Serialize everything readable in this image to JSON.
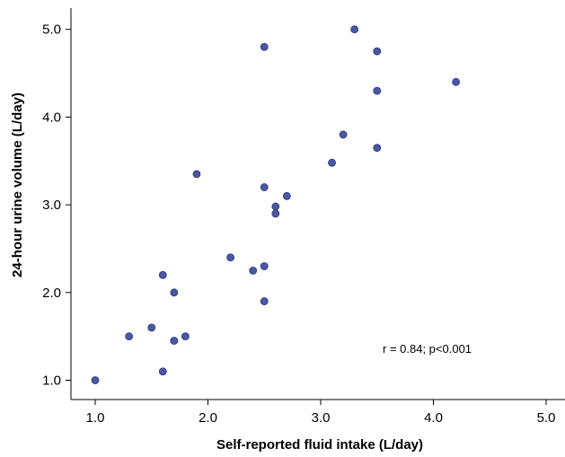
{
  "chart_data": {
    "type": "scatter",
    "xlabel": "Self-reported fluid intake (L/day)",
    "ylabel": "24-hour urine volume (L/day)",
    "xlim": [
      0.75,
      5.2
    ],
    "ylim": [
      0.8,
      5.18
    ],
    "x_ticks": [
      1.0,
      2.0,
      3.0,
      4.0,
      5.0
    ],
    "x_tick_labels": [
      "1.0",
      "2.0",
      "3.0",
      "4.0",
      "5.0"
    ],
    "y_ticks": [
      1.0,
      2.0,
      3.0,
      4.0,
      5.0
    ],
    "y_tick_labels": [
      "1.0",
      "2.0",
      "3.0",
      "4.0",
      "5.0"
    ],
    "annotation": "r = 0.84; p<0.001",
    "grid": false,
    "marker_color": "#4a57a6",
    "marker_edge_color": "#2b3575",
    "points": [
      {
        "x": 1.0,
        "y": 1.0
      },
      {
        "x": 1.3,
        "y": 1.5
      },
      {
        "x": 1.5,
        "y": 1.6
      },
      {
        "x": 1.6,
        "y": 1.1
      },
      {
        "x": 1.6,
        "y": 2.2
      },
      {
        "x": 1.7,
        "y": 2.0
      },
      {
        "x": 1.7,
        "y": 1.45
      },
      {
        "x": 1.8,
        "y": 1.5
      },
      {
        "x": 1.9,
        "y": 3.35
      },
      {
        "x": 2.2,
        "y": 2.4
      },
      {
        "x": 2.4,
        "y": 2.25
      },
      {
        "x": 2.5,
        "y": 2.3
      },
      {
        "x": 2.5,
        "y": 1.9
      },
      {
        "x": 2.5,
        "y": 3.2
      },
      {
        "x": 2.5,
        "y": 4.8
      },
      {
        "x": 2.6,
        "y": 2.98
      },
      {
        "x": 2.6,
        "y": 2.9
      },
      {
        "x": 2.7,
        "y": 3.1
      },
      {
        "x": 3.1,
        "y": 3.48
      },
      {
        "x": 3.2,
        "y": 3.8
      },
      {
        "x": 3.3,
        "y": 5.0
      },
      {
        "x": 3.5,
        "y": 4.75
      },
      {
        "x": 3.5,
        "y": 4.3
      },
      {
        "x": 3.5,
        "y": 3.65
      },
      {
        "x": 4.2,
        "y": 4.4
      }
    ]
  }
}
